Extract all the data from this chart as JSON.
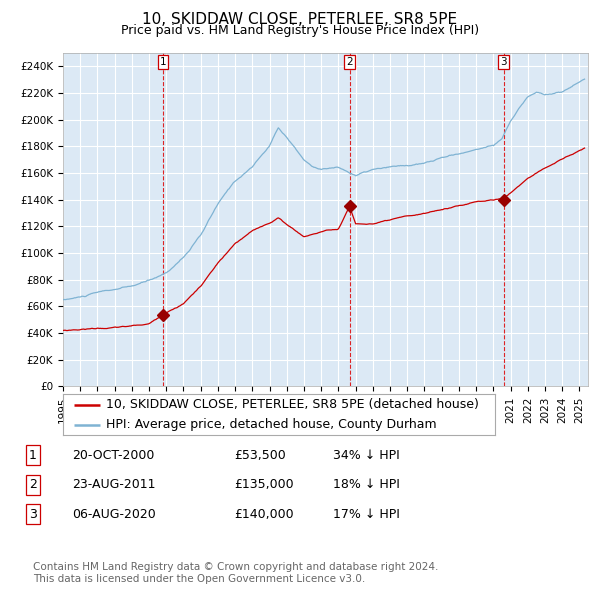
{
  "title": "10, SKIDDAW CLOSE, PETERLEE, SR8 5PE",
  "subtitle": "Price paid vs. HM Land Registry's House Price Index (HPI)",
  "xlim_start": 1995.0,
  "xlim_end": 2025.5,
  "ylim_bottom": 0,
  "ylim_top": 250000,
  "yticks": [
    0,
    20000,
    40000,
    60000,
    80000,
    100000,
    120000,
    140000,
    160000,
    180000,
    200000,
    220000,
    240000
  ],
  "ytick_labels": [
    "£0",
    "£20K",
    "£40K",
    "£60K",
    "£80K",
    "£100K",
    "£120K",
    "£140K",
    "£160K",
    "£180K",
    "£200K",
    "£220K",
    "£240K"
  ],
  "bg_color": "#dce9f5",
  "grid_color": "#ffffff",
  "red_line_color": "#cc0000",
  "blue_line_color": "#7fb3d3",
  "sale_marker_color": "#990000",
  "vline_color": "#dd0000",
  "transaction1_x": 2000.8,
  "transaction1_y": 53500,
  "transaction2_x": 2011.65,
  "transaction2_y": 135000,
  "transaction3_x": 2020.6,
  "transaction3_y": 140000,
  "legend_line1": "10, SKIDDAW CLOSE, PETERLEE, SR8 5PE (detached house)",
  "legend_line2": "HPI: Average price, detached house, County Durham",
  "table_rows": [
    [
      "1",
      "20-OCT-2000",
      "£53,500",
      "34% ↓ HPI"
    ],
    [
      "2",
      "23-AUG-2011",
      "£135,000",
      "18% ↓ HPI"
    ],
    [
      "3",
      "06-AUG-2020",
      "£140,000",
      "17% ↓ HPI"
    ]
  ],
  "footer": "Contains HM Land Registry data © Crown copyright and database right 2024.\nThis data is licensed under the Open Government Licence v3.0.",
  "title_fontsize": 11,
  "subtitle_fontsize": 9,
  "tick_fontsize": 7.5,
  "legend_fontsize": 9,
  "table_fontsize": 9,
  "footer_fontsize": 7.5
}
